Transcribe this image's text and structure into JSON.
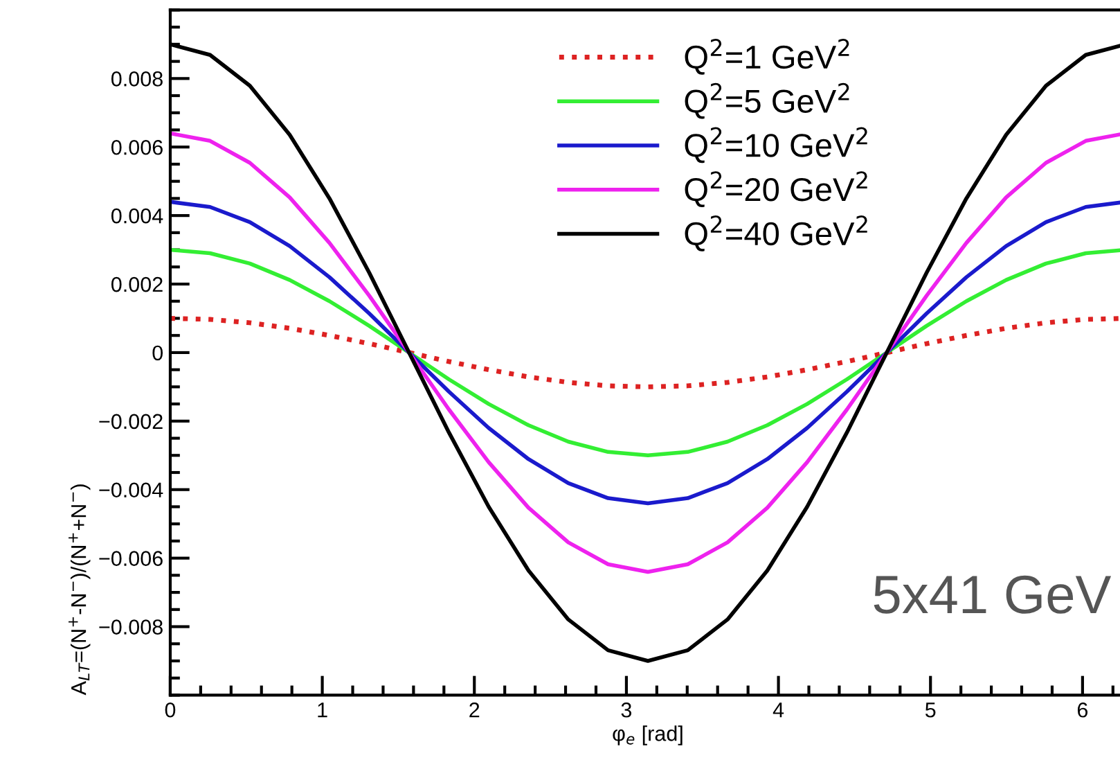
{
  "chart_data": {
    "type": "line",
    "xlabel": "φ$_{e}$ [rad]",
    "ylabel": "A$_{LT}$=(N$^{+}$-N$^{−}$)/(N$^{+}$+N$^{−}$)",
    "x": [
      0,
      0.2618,
      0.5236,
      0.7854,
      1.0472,
      1.309,
      1.5708,
      1.8326,
      2.0944,
      2.3562,
      2.618,
      2.8798,
      3.1416,
      3.4034,
      3.6652,
      3.927,
      4.1888,
      4.4506,
      4.7124,
      4.9742,
      5.236,
      5.4978,
      5.7596,
      6.0214,
      6.2832
    ],
    "series": [
      {
        "name": "Q$^{2}$=1 GeV$^{2}$",
        "color": "#dd2222",
        "line_style": "dotted",
        "values": [
          0.001,
          0.00097,
          0.00087,
          0.00071,
          0.0005,
          0.00026,
          0,
          -0.00026,
          -0.0005,
          -0.00071,
          -0.00087,
          -0.00097,
          -0.001,
          -0.00097,
          -0.00087,
          -0.00071,
          -0.0005,
          -0.00026,
          0,
          0.00026,
          0.0005,
          0.00071,
          0.00087,
          0.00097,
          0.001
        ]
      },
      {
        "name": "Q$^{2}$=5 GeV$^{2}$",
        "color": "#33ee33",
        "line_style": "solid",
        "values": [
          0.003,
          0.0029,
          0.0026,
          0.00212,
          0.0015,
          0.00078,
          0,
          -0.00078,
          -0.0015,
          -0.00212,
          -0.0026,
          -0.0029,
          -0.003,
          -0.0029,
          -0.0026,
          -0.00212,
          -0.0015,
          -0.00078,
          0,
          0.00078,
          0.0015,
          0.00212,
          0.0026,
          0.0029,
          0.003
        ]
      },
      {
        "name": "Q$^{2}$=10 GeV$^{2}$",
        "color": "#1a1acc",
        "line_style": "solid",
        "values": [
          0.0044,
          0.00425,
          0.00381,
          0.00311,
          0.0022,
          0.00114,
          0,
          -0.00114,
          -0.0022,
          -0.00311,
          -0.00381,
          -0.00425,
          -0.0044,
          -0.00425,
          -0.00381,
          -0.00311,
          -0.0022,
          -0.00114,
          0,
          0.00114,
          0.0022,
          0.00311,
          0.00381,
          0.00425,
          0.0044
        ]
      },
      {
        "name": "Q$^{2}$=20 GeV$^{2}$",
        "color": "#ee22ee",
        "line_style": "solid",
        "values": [
          0.0064,
          0.00618,
          0.00554,
          0.00453,
          0.0032,
          0.00166,
          0,
          -0.00166,
          -0.0032,
          -0.00453,
          -0.00554,
          -0.00618,
          -0.0064,
          -0.00618,
          -0.00554,
          -0.00453,
          -0.0032,
          -0.00166,
          0,
          0.00166,
          0.0032,
          0.00453,
          0.00554,
          0.00618,
          0.0064
        ]
      },
      {
        "name": "Q$^{2}$=40 GeV$^{2}$",
        "color": "#000000",
        "line_style": "solid",
        "values": [
          0.009,
          0.00869,
          0.00779,
          0.00636,
          0.0045,
          0.00233,
          0,
          -0.00233,
          -0.0045,
          -0.00636,
          -0.00779,
          -0.00869,
          -0.009,
          -0.00869,
          -0.00779,
          -0.00636,
          -0.0045,
          -0.00233,
          0,
          0.00233,
          0.0045,
          0.00636,
          0.00779,
          0.00869,
          0.009
        ]
      }
    ],
    "xlim": [
      0,
      6.2832
    ],
    "ylim": [
      -0.01,
      0.01
    ],
    "xticks": [
      0,
      1,
      2,
      3,
      4,
      5,
      6
    ],
    "yticks": [
      {
        "value": -0.008,
        "label": "−0.008"
      },
      {
        "value": -0.006,
        "label": "−0.006"
      },
      {
        "value": -0.004,
        "label": "−0.004"
      },
      {
        "value": -0.002,
        "label": "−0.002"
      },
      0,
      0.002,
      0.004,
      0.006,
      0.008
    ],
    "legend": "top",
    "grid": false,
    "marker": "none",
    "annotations": [
      "5x41 GeV"
    ]
  }
}
